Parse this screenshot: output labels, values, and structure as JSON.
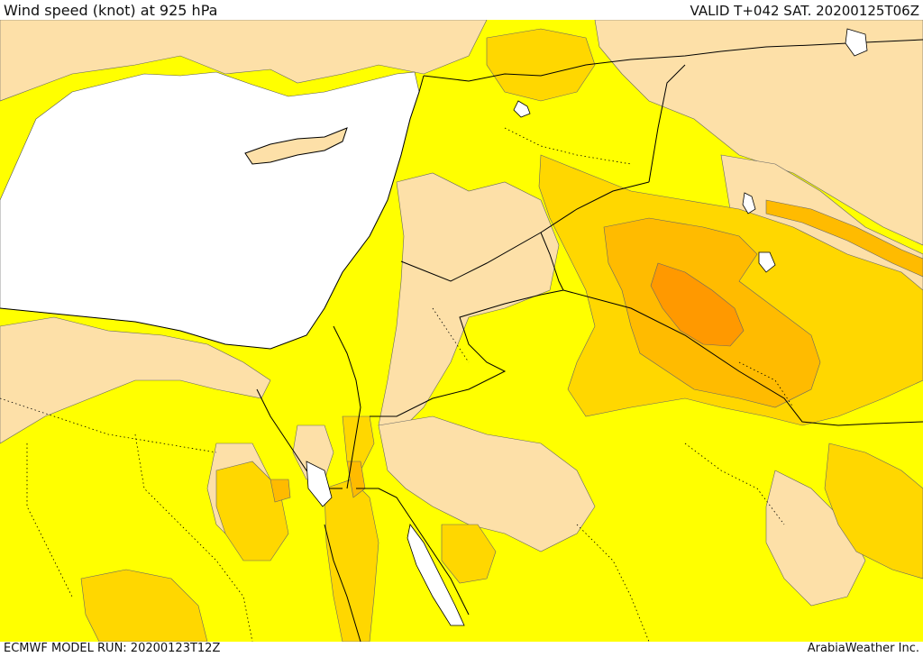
{
  "header": {
    "title": "Wind speed (knot) at 925 hPa",
    "valid": "VALID T+042 SAT. 20200125T06Z"
  },
  "footer": {
    "model_run": "ECMWF MODEL RUN: 20200123T12Z",
    "credit": "ArabiaWeather Inc."
  },
  "colors": {
    "calm": "#ffffff",
    "light": "#fde0a8",
    "moderate": "#ffff00",
    "fresh": "#ffd700",
    "strong": "#ffbb00",
    "very_strong": "#ff9900",
    "borders": "#000000"
  }
}
